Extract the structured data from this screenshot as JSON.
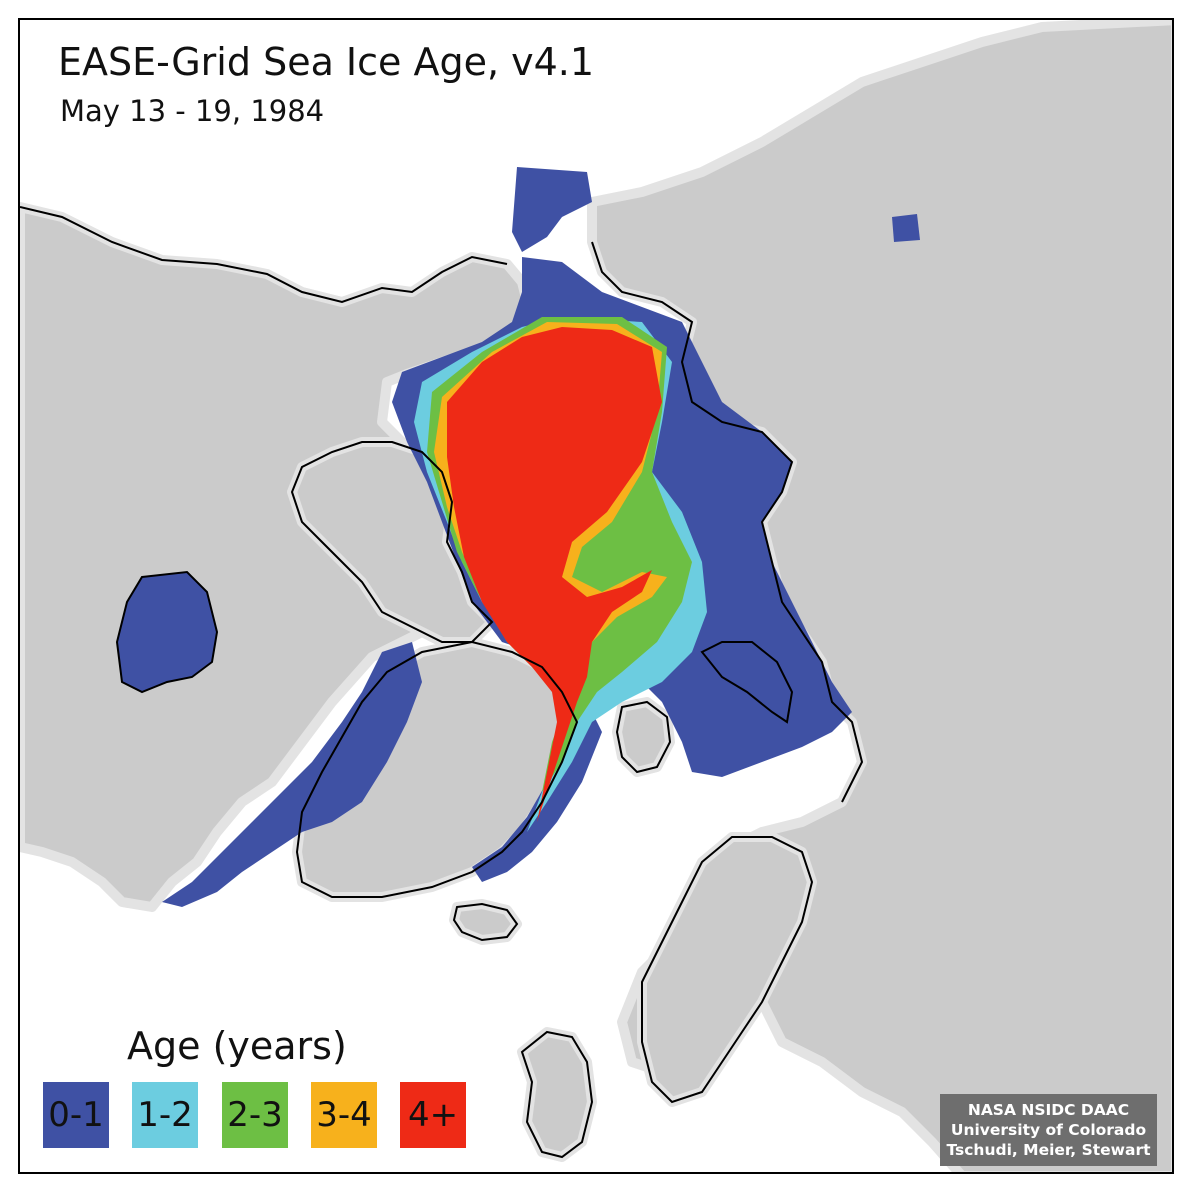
{
  "map": {
    "title": "EASE-Grid Sea Ice Age, v4.1",
    "subtitle": "May 13 - 19, 1984",
    "colors": {
      "land": "#cbcbcb",
      "coast_halo": "#e3e3e3",
      "ocean": "#ffffff",
      "coastline": "#000000"
    }
  },
  "legend": {
    "title": "Age (years)",
    "classes": [
      {
        "label": "0-1",
        "color": "#3f51a4"
      },
      {
        "label": "1-2",
        "color": "#6ccde0"
      },
      {
        "label": "2-3",
        "color": "#6dbf44"
      },
      {
        "label": "3-4",
        "color": "#f7b11c"
      },
      {
        "label": "4+",
        "color": "#ee2a16"
      }
    ]
  },
  "credit": {
    "line1": "NASA NSIDC DAAC",
    "line2": "University of Colorado",
    "line3": "Tschudi, Meier, Stewart"
  }
}
